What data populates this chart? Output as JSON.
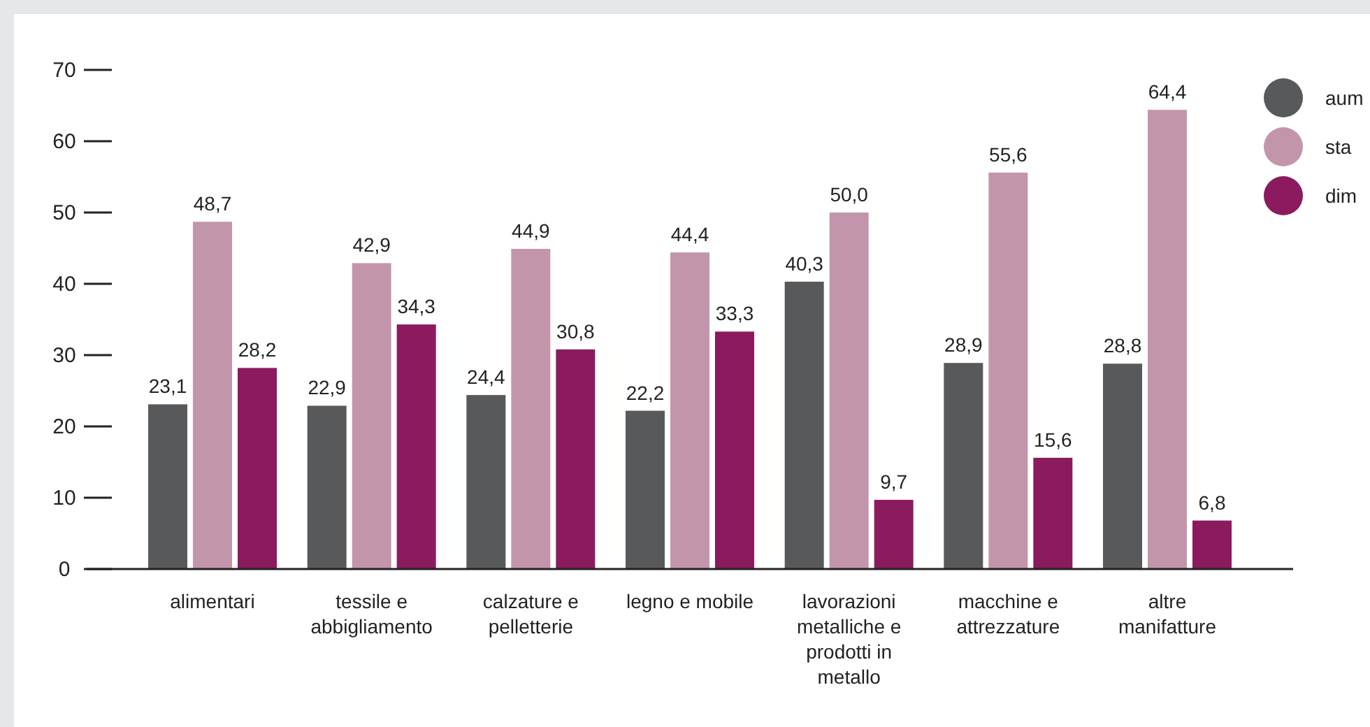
{
  "chart_data": {
    "type": "bar",
    "categories": [
      "alimentari",
      "tessile e abbigliamento",
      "calzature e pelletterie",
      "legno e mobile",
      "lavorazioni metalliche e prodotti in metallo",
      "macchine e attrezzature",
      "altre manifatture"
    ],
    "series": [
      {
        "name": "aum",
        "color": "#58595b",
        "values": [
          23.1,
          22.9,
          24.4,
          22.2,
          40.3,
          28.9,
          28.8
        ],
        "value_labels": [
          "23,1",
          "22,9",
          "24,4",
          "22,2",
          "40,3",
          "28,9",
          "28,8"
        ]
      },
      {
        "name": "sta",
        "color": "#c395ab",
        "values": [
          48.7,
          42.9,
          44.9,
          44.4,
          50.0,
          55.6,
          64.4
        ],
        "value_labels": [
          "48,7",
          "42,9",
          "44,9",
          "44,4",
          "50,0",
          "55,6",
          "64,4"
        ]
      },
      {
        "name": "dim",
        "color": "#8b1a5e",
        "values": [
          28.2,
          34.3,
          30.8,
          33.3,
          9.7,
          15.6,
          6.8
        ],
        "value_labels": [
          "28,2",
          "34,3",
          "30,8",
          "33,3",
          "9,7",
          "15,6",
          "6,8"
        ]
      }
    ],
    "ylim": [
      0,
      70
    ],
    "yticks": [
      0,
      10,
      20,
      30,
      40,
      50,
      60,
      70
    ],
    "legend": "top right"
  }
}
